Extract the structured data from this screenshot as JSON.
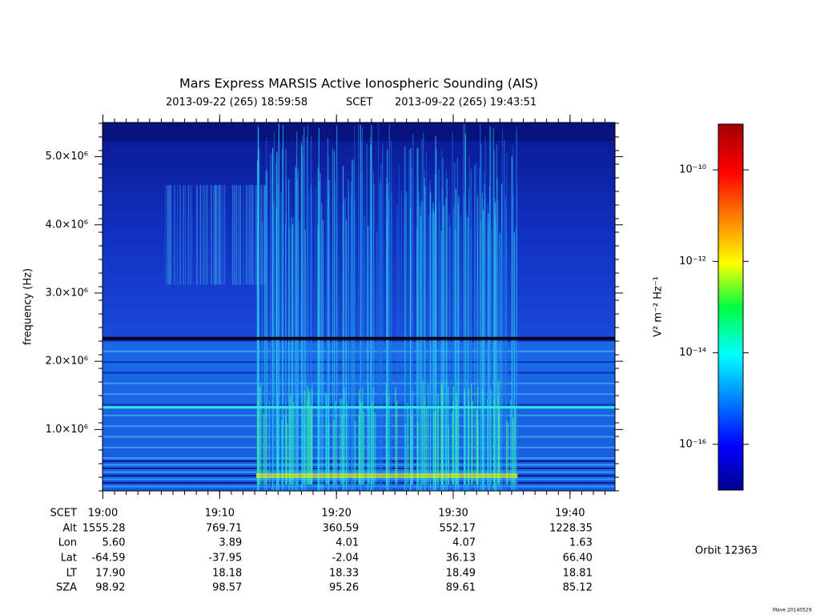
{
  "chart_data": {
    "type": "spectrogram",
    "title": "Mars Express MARSIS Active Ionospheric Sounding (AIS)",
    "start_time": "2013-09-22 (265) 18:59:58",
    "time_system": "SCET",
    "end_time": "2013-09-22 (265) 19:43:51",
    "y_label": "frequency (Hz)",
    "ylim": [
      100000,
      5500000
    ],
    "yticks": [
      {
        "value": 1000000,
        "label": "1.0×10⁶"
      },
      {
        "value": 2000000,
        "label": "2.0×10⁶"
      },
      {
        "value": 3000000,
        "label": "3.0×10⁶"
      },
      {
        "value": 4000000,
        "label": "4.0×10⁶"
      },
      {
        "value": 5000000,
        "label": "5.0×10⁶"
      }
    ],
    "grid": false,
    "colorbar": {
      "label": "V² m⁻² Hz⁻¹",
      "log_scale": true,
      "clim": [
        1e-17,
        1e-09
      ],
      "ticks": [
        {
          "value": 1e-10,
          "label": "10⁻¹⁰"
        },
        {
          "value": 1e-12,
          "label": "10⁻¹²"
        },
        {
          "value": 1e-14,
          "label": "10⁻¹⁴"
        },
        {
          "value": 1e-16,
          "label": "10⁻¹⁶"
        }
      ]
    },
    "ephemeris": {
      "time_label": "SCET",
      "times": [
        "19:00",
        "19:10",
        "19:20",
        "19:30",
        "19:40"
      ],
      "rows": [
        {
          "label": "Alt",
          "values": [
            "1555.28",
            "769.71",
            "360.59",
            "552.17",
            "1228.35"
          ]
        },
        {
          "label": "Lon",
          "values": [
            "5.60",
            "3.89",
            "4.01",
            "4.07",
            "1.63"
          ]
        },
        {
          "label": "Lat",
          "values": [
            "-64.59",
            "-37.95",
            "-2.04",
            "36.13",
            "66.40"
          ]
        },
        {
          "label": "LT",
          "values": [
            "17.90",
            "18.18",
            "18.33",
            "18.49",
            "18.81"
          ]
        },
        {
          "label": "SZA",
          "values": [
            "98.92",
            "98.57",
            "95.26",
            "89.61",
            "85.12"
          ]
        }
      ]
    },
    "orbit": "Orbit 12363",
    "footer": "Mave 20140529"
  }
}
